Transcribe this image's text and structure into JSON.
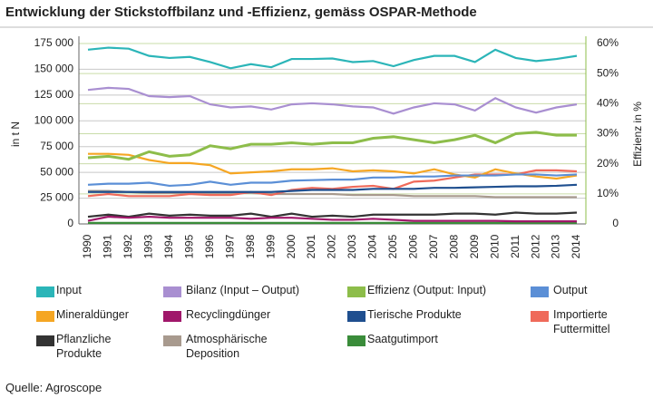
{
  "title": "Entwicklung der Stickstoffbilanz und -Effizienz, gemäss OSPAR-Methode",
  "source": "Quelle: Agroscope",
  "chart_data": {
    "type": "line",
    "ylabel": "in t N",
    "y2label": "Effizienz in %",
    "categories": [
      "1990",
      "1991",
      "1992",
      "1993",
      "1994",
      "1995",
      "1996",
      "1997",
      "1998",
      "1999",
      "2000",
      "2001",
      "2002",
      "2003",
      "2004",
      "2005",
      "2006",
      "2007",
      "2008",
      "2009",
      "2010",
      "2011",
      "2012",
      "2013",
      "2014"
    ],
    "ylim": [
      0,
      175000
    ],
    "yticks": [
      0,
      {
        "value": 25000,
        "label": "25 000"
      },
      {
        "value": 50000,
        "label": "50 000"
      },
      {
        "value": 75000,
        "label": "75 000"
      },
      {
        "value": 100000,
        "label": "100 000"
      },
      {
        "value": 125000,
        "label": "125 000"
      },
      {
        "value": 150000,
        "label": "150 000"
      },
      {
        "value": 175000,
        "label": "175 000"
      }
    ],
    "y2lim": [
      0,
      60
    ],
    "y2ticks": [
      0,
      {
        "value": 10,
        "label": "10%"
      },
      {
        "value": 20,
        "label": "20%"
      },
      {
        "value": 30,
        "label": "30%"
      },
      {
        "value": 40,
        "label": "40%"
      },
      {
        "value": 50,
        "label": "50%"
      },
      {
        "value": 60,
        "label": "60%"
      }
    ],
    "grid": true,
    "series": [
      {
        "name": "Input",
        "color": "#2bb5b8",
        "values": [
          169000,
          171000,
          170000,
          163000,
          161000,
          162000,
          157000,
          151000,
          155000,
          152000,
          160000,
          160000,
          160500,
          157000,
          158000,
          153000,
          159000,
          163000,
          163000,
          157000,
          169000,
          161000,
          158000,
          160000,
          163000
        ]
      },
      {
        "name": "Bilanz (Input – Output)",
        "color": "#a98fd1",
        "values": [
          130000,
          132000,
          131000,
          124000,
          123000,
          124000,
          116000,
          113000,
          114000,
          111000,
          116000,
          117000,
          116000,
          114000,
          113000,
          107000,
          113000,
          117000,
          116000,
          110000,
          122000,
          113000,
          108000,
          113000,
          116000
        ]
      },
      {
        "name": "Effizienz (Output: Input)",
        "color": "#8dbd4a",
        "axis": "y2",
        "values": [
          22,
          22.5,
          21.5,
          24,
          22.5,
          23,
          26,
          25,
          26.5,
          26.5,
          27,
          26.5,
          27,
          27,
          28.5,
          29,
          28,
          27,
          28,
          29.5,
          27,
          30,
          30.5,
          29.5,
          29.5
        ]
      },
      {
        "name": "Output",
        "color": "#5b8fd6",
        "values": [
          38000,
          39000,
          39000,
          40000,
          37000,
          38000,
          41000,
          38000,
          40000,
          40000,
          42000,
          42500,
          43000,
          43000,
          45000,
          45000,
          46000,
          46000,
          47000,
          47000,
          47000,
          48000,
          48000,
          47000,
          48000
        ]
      },
      {
        "name": "Mineraldünger",
        "color": "#f5a623",
        "values": [
          68000,
          68000,
          67000,
          62000,
          59000,
          59000,
          57000,
          49000,
          50000,
          51000,
          53000,
          53000,
          54000,
          51000,
          52000,
          51000,
          49000,
          53000,
          48000,
          45000,
          53000,
          49000,
          46000,
          44000,
          47000
        ]
      },
      {
        "name": "Recyclingdünger",
        "color": "#a0176a",
        "values": [
          3000,
          7000,
          6000,
          7000,
          6000,
          6000,
          6000,
          6000,
          5000,
          6000,
          6000,
          5000,
          4000,
          4000,
          5000,
          4000,
          3000,
          3000,
          3000,
          3000,
          3000,
          2500,
          2500,
          2500,
          2500
        ]
      },
      {
        "name": "Tierische Produkte",
        "color": "#1f4f8f",
        "values": [
          31000,
          31000,
          31000,
          31000,
          31000,
          31000,
          31000,
          31000,
          31000,
          31000,
          32000,
          33000,
          33000,
          33000,
          34000,
          34000,
          34000,
          35000,
          35000,
          35500,
          36000,
          36500,
          36500,
          37000,
          38000
        ]
      },
      {
        "name": "Importierte Futtermittel",
        "color": "#ef6a5a",
        "values": [
          27000,
          29000,
          27000,
          27000,
          27000,
          29000,
          28000,
          28000,
          31000,
          28000,
          33000,
          35000,
          34000,
          36000,
          37000,
          34000,
          41000,
          42000,
          45000,
          48000,
          48000,
          48000,
          52000,
          52000,
          51000
        ]
      },
      {
        "name": "Pflanzliche Produkte",
        "color": "#333333",
        "values": [
          7000,
          9000,
          7000,
          10000,
          8000,
          9000,
          8000,
          8000,
          10000,
          7000,
          10000,
          7000,
          8000,
          7000,
          9000,
          9000,
          9000,
          9000,
          10000,
          10000,
          9000,
          11000,
          10000,
          10000,
          11000
        ]
      },
      {
        "name": "Atmosphärische Deposition",
        "color": "#a89a8e",
        "values": [
          32000,
          32000,
          31000,
          30000,
          30000,
          30000,
          30000,
          30000,
          30000,
          29000,
          29000,
          29000,
          29000,
          28000,
          28000,
          28000,
          27000,
          27000,
          27000,
          27000,
          26000,
          26000,
          26000,
          26000,
          26000
        ]
      },
      {
        "name": "Saatgutimport",
        "color": "#3a8c3a",
        "values": [
          1000,
          1000,
          1000,
          1000,
          1000,
          1000,
          1000,
          1000,
          1000,
          1000,
          1000,
          1000,
          1000,
          1000,
          1000,
          1000,
          1000,
          1000,
          1000,
          1000,
          1000,
          1000,
          1000,
          1000,
          1000
        ]
      }
    ]
  }
}
